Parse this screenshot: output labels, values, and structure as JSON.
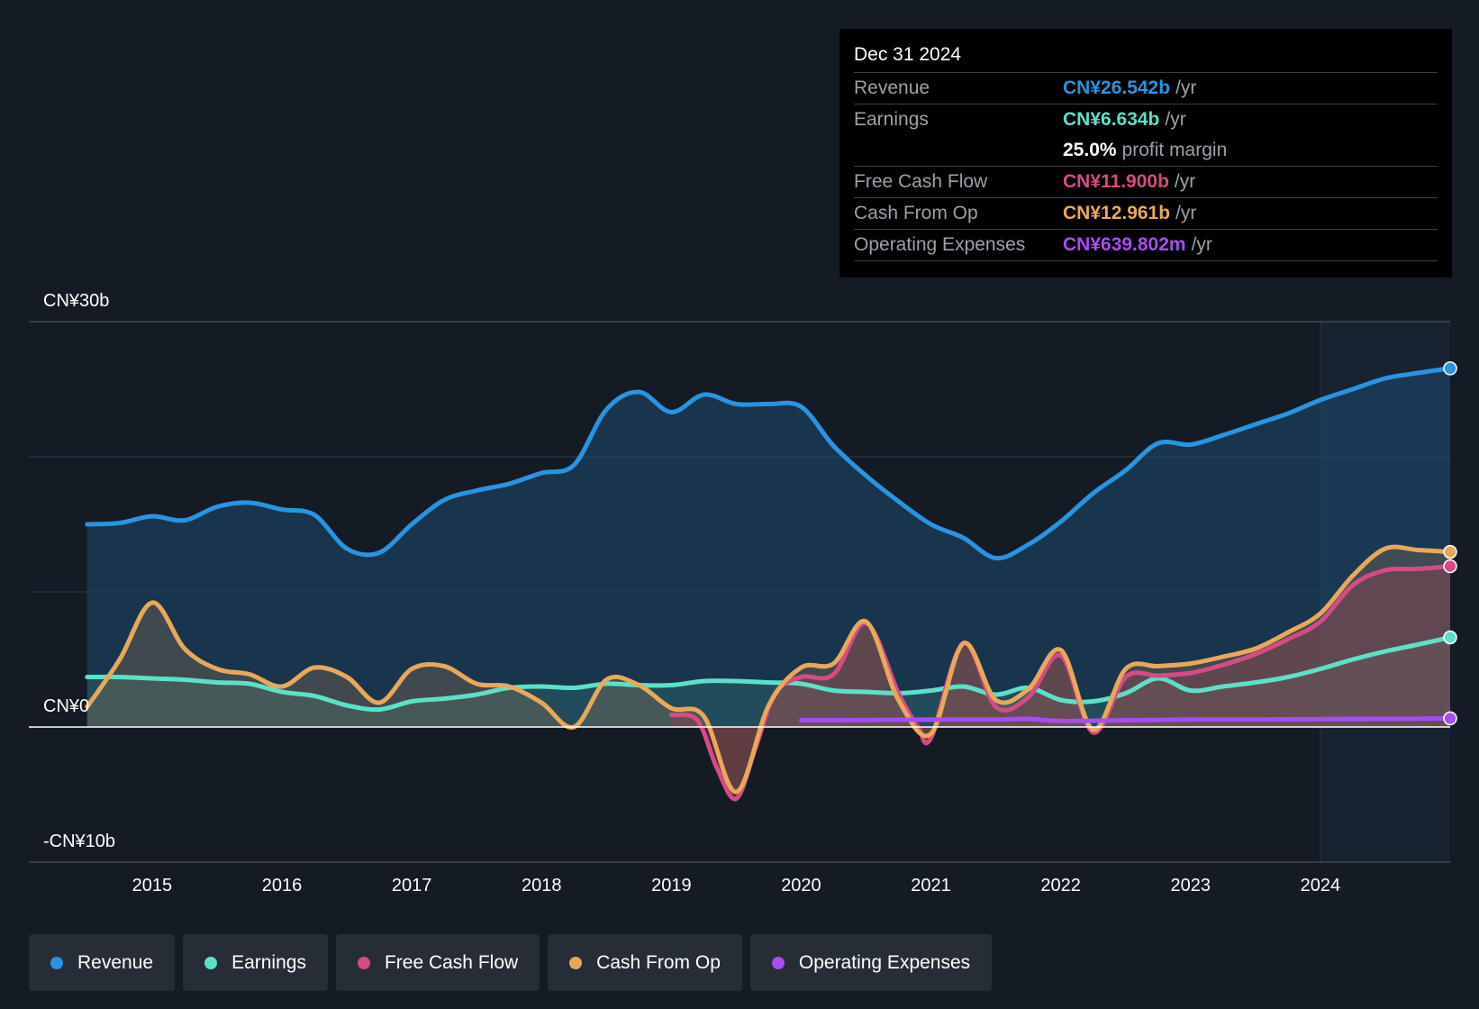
{
  "tooltip": {
    "date": "Dec 31 2024",
    "rows": [
      {
        "label": "Revenue",
        "value": "CN¥26.542b",
        "unit": "/yr",
        "color": "#2b93e0"
      },
      {
        "label": "Earnings",
        "value": "CN¥6.634b",
        "unit": "/yr",
        "color": "#5de0c8"
      },
      {
        "label": "",
        "value": "25.0%",
        "unit": "profit margin",
        "color": "#ffffff"
      },
      {
        "label": "Free Cash Flow",
        "value": "CN¥11.900b",
        "unit": "/yr",
        "color": "#d44c83"
      },
      {
        "label": "Cash From Op",
        "value": "CN¥12.961b",
        "unit": "/yr",
        "color": "#e8a85c"
      },
      {
        "label": "Operating Expenses",
        "value": "CN¥639.802m",
        "unit": "/yr",
        "color": "#a64ef0"
      }
    ]
  },
  "legend": [
    {
      "label": "Revenue",
      "color": "#2b93e0"
    },
    {
      "label": "Earnings",
      "color": "#5de0c8"
    },
    {
      "label": "Free Cash Flow",
      "color": "#d44c83"
    },
    {
      "label": "Cash From Op",
      "color": "#e8a85c"
    },
    {
      "label": "Operating Expenses",
      "color": "#a64ef0"
    }
  ],
  "chart_data": {
    "type": "area",
    "title": "",
    "y_unit": "CN¥ billions",
    "ylim": [
      -10,
      30
    ],
    "y_tick_labels": [
      {
        "value": 30,
        "label": "CN¥30b"
      },
      {
        "value": 0,
        "label": "CN¥0"
      },
      {
        "value": -10,
        "label": "-CN¥10b"
      }
    ],
    "xlim": [
      2014.05,
      2025.0
    ],
    "x_ticks": [
      2015,
      2016,
      2017,
      2018,
      2019,
      2020,
      2021,
      2022,
      2023,
      2024
    ],
    "x_tick_labels": [
      "2015",
      "2016",
      "2017",
      "2018",
      "2019",
      "2020",
      "2021",
      "2022",
      "2023",
      "2024"
    ],
    "forecast_start": 2024.0,
    "series": [
      {
        "name": "Revenue",
        "color": "#2b93e0",
        "points": [
          [
            2014.5,
            15.0
          ],
          [
            2014.75,
            15.1
          ],
          [
            2015.0,
            15.6
          ],
          [
            2015.25,
            15.3
          ],
          [
            2015.5,
            16.3
          ],
          [
            2015.75,
            16.6
          ],
          [
            2016.0,
            16.1
          ],
          [
            2016.25,
            15.7
          ],
          [
            2016.5,
            13.2
          ],
          [
            2016.75,
            12.9
          ],
          [
            2017.0,
            15.0
          ],
          [
            2017.25,
            16.8
          ],
          [
            2017.5,
            17.5
          ],
          [
            2017.75,
            18.0
          ],
          [
            2018.0,
            18.8
          ],
          [
            2018.25,
            19.4
          ],
          [
            2018.5,
            23.5
          ],
          [
            2018.75,
            24.8
          ],
          [
            2019.0,
            23.3
          ],
          [
            2019.25,
            24.6
          ],
          [
            2019.5,
            23.9
          ],
          [
            2019.75,
            23.9
          ],
          [
            2020.0,
            23.7
          ],
          [
            2020.25,
            20.8
          ],
          [
            2020.5,
            18.6
          ],
          [
            2020.75,
            16.7
          ],
          [
            2021.0,
            15.0
          ],
          [
            2021.25,
            14.0
          ],
          [
            2021.5,
            12.5
          ],
          [
            2021.75,
            13.5
          ],
          [
            2022.0,
            15.2
          ],
          [
            2022.25,
            17.3
          ],
          [
            2022.5,
            19.0
          ],
          [
            2022.75,
            21.0
          ],
          [
            2023.0,
            20.9
          ],
          [
            2023.25,
            21.6
          ],
          [
            2023.5,
            22.4
          ],
          [
            2023.75,
            23.2
          ],
          [
            2024.0,
            24.2
          ],
          [
            2024.25,
            25.0
          ],
          [
            2024.5,
            25.8
          ],
          [
            2024.75,
            26.2
          ],
          [
            2025.0,
            26.542
          ]
        ]
      },
      {
        "name": "Earnings",
        "color": "#5de0c8",
        "points": [
          [
            2014.5,
            3.7
          ],
          [
            2014.75,
            3.7
          ],
          [
            2015.0,
            3.6
          ],
          [
            2015.25,
            3.5
          ],
          [
            2015.5,
            3.3
          ],
          [
            2015.75,
            3.2
          ],
          [
            2016.0,
            2.6
          ],
          [
            2016.25,
            2.3
          ],
          [
            2016.5,
            1.6
          ],
          [
            2016.75,
            1.3
          ],
          [
            2017.0,
            1.9
          ],
          [
            2017.25,
            2.1
          ],
          [
            2017.5,
            2.4
          ],
          [
            2017.75,
            2.9
          ],
          [
            2018.0,
            3.0
          ],
          [
            2018.25,
            2.9
          ],
          [
            2018.5,
            3.2
          ],
          [
            2018.75,
            3.1
          ],
          [
            2019.0,
            3.1
          ],
          [
            2019.25,
            3.4
          ],
          [
            2019.5,
            3.4
          ],
          [
            2019.75,
            3.3
          ],
          [
            2020.0,
            3.2
          ],
          [
            2020.25,
            2.7
          ],
          [
            2020.5,
            2.6
          ],
          [
            2020.75,
            2.5
          ],
          [
            2021.0,
            2.7
          ],
          [
            2021.25,
            3.0
          ],
          [
            2021.5,
            2.4
          ],
          [
            2021.75,
            2.9
          ],
          [
            2022.0,
            2.0
          ],
          [
            2022.25,
            1.9
          ],
          [
            2022.5,
            2.5
          ],
          [
            2022.75,
            3.6
          ],
          [
            2023.0,
            2.7
          ],
          [
            2023.25,
            3.0
          ],
          [
            2023.5,
            3.3
          ],
          [
            2023.75,
            3.7
          ],
          [
            2024.0,
            4.3
          ],
          [
            2024.25,
            5.0
          ],
          [
            2024.5,
            5.6
          ],
          [
            2024.75,
            6.1
          ],
          [
            2025.0,
            6.634
          ]
        ]
      },
      {
        "name": "Free Cash Flow",
        "color": "#d44c83",
        "points": [
          [
            2019.0,
            0.9
          ],
          [
            2019.2,
            0.5
          ],
          [
            2019.35,
            -3.0
          ],
          [
            2019.5,
            -5.3
          ],
          [
            2019.65,
            -1.5
          ],
          [
            2019.8,
            2.5
          ],
          [
            2020.0,
            3.7
          ],
          [
            2020.25,
            3.9
          ],
          [
            2020.5,
            7.7
          ],
          [
            2020.75,
            2.5
          ],
          [
            2020.9,
            0.0
          ],
          [
            2021.0,
            -0.8
          ],
          [
            2021.25,
            6.2
          ],
          [
            2021.5,
            1.5
          ],
          [
            2021.75,
            2.2
          ],
          [
            2022.0,
            5.3
          ],
          [
            2022.25,
            -0.4
          ],
          [
            2022.5,
            3.7
          ],
          [
            2022.75,
            3.8
          ],
          [
            2023.0,
            4.0
          ],
          [
            2023.25,
            4.6
          ],
          [
            2023.5,
            5.4
          ],
          [
            2023.75,
            6.5
          ],
          [
            2024.0,
            7.8
          ],
          [
            2024.25,
            10.5
          ],
          [
            2024.5,
            11.6
          ],
          [
            2024.75,
            11.7
          ],
          [
            2025.0,
            11.9
          ]
        ]
      },
      {
        "name": "Cash From Op",
        "color": "#e8a85c",
        "points": [
          [
            2014.5,
            1.5
          ],
          [
            2014.75,
            5.0
          ],
          [
            2015.0,
            9.2
          ],
          [
            2015.25,
            5.8
          ],
          [
            2015.5,
            4.3
          ],
          [
            2015.75,
            3.9
          ],
          [
            2016.0,
            3.0
          ],
          [
            2016.25,
            4.4
          ],
          [
            2016.5,
            3.7
          ],
          [
            2016.75,
            1.8
          ],
          [
            2017.0,
            4.3
          ],
          [
            2017.25,
            4.5
          ],
          [
            2017.5,
            3.2
          ],
          [
            2017.75,
            3.0
          ],
          [
            2018.0,
            1.8
          ],
          [
            2018.25,
            0.0
          ],
          [
            2018.5,
            3.5
          ],
          [
            2018.75,
            3.1
          ],
          [
            2019.0,
            1.4
          ],
          [
            2019.25,
            0.8
          ],
          [
            2019.5,
            -4.8
          ],
          [
            2019.75,
            1.6
          ],
          [
            2020.0,
            4.4
          ],
          [
            2020.25,
            4.7
          ],
          [
            2020.5,
            7.8
          ],
          [
            2020.75,
            2.0
          ],
          [
            2021.0,
            -0.5
          ],
          [
            2021.25,
            6.2
          ],
          [
            2021.5,
            2.0
          ],
          [
            2021.75,
            2.8
          ],
          [
            2022.0,
            5.7
          ],
          [
            2022.25,
            -0.2
          ],
          [
            2022.5,
            4.3
          ],
          [
            2022.75,
            4.5
          ],
          [
            2023.0,
            4.7
          ],
          [
            2023.25,
            5.2
          ],
          [
            2023.5,
            5.8
          ],
          [
            2023.75,
            7.0
          ],
          [
            2024.0,
            8.4
          ],
          [
            2024.25,
            11.2
          ],
          [
            2024.5,
            13.2
          ],
          [
            2024.75,
            13.1
          ],
          [
            2025.0,
            12.961
          ]
        ]
      },
      {
        "name": "Operating Expenses",
        "color": "#a64ef0",
        "points": [
          [
            2020.0,
            0.5
          ],
          [
            2020.5,
            0.52
          ],
          [
            2021.0,
            0.55
          ],
          [
            2021.5,
            0.55
          ],
          [
            2021.75,
            0.6
          ],
          [
            2022.0,
            0.45
          ],
          [
            2022.5,
            0.5
          ],
          [
            2023.0,
            0.55
          ],
          [
            2023.5,
            0.55
          ],
          [
            2024.0,
            0.58
          ],
          [
            2024.5,
            0.6
          ],
          [
            2025.0,
            0.64
          ]
        ]
      }
    ]
  }
}
